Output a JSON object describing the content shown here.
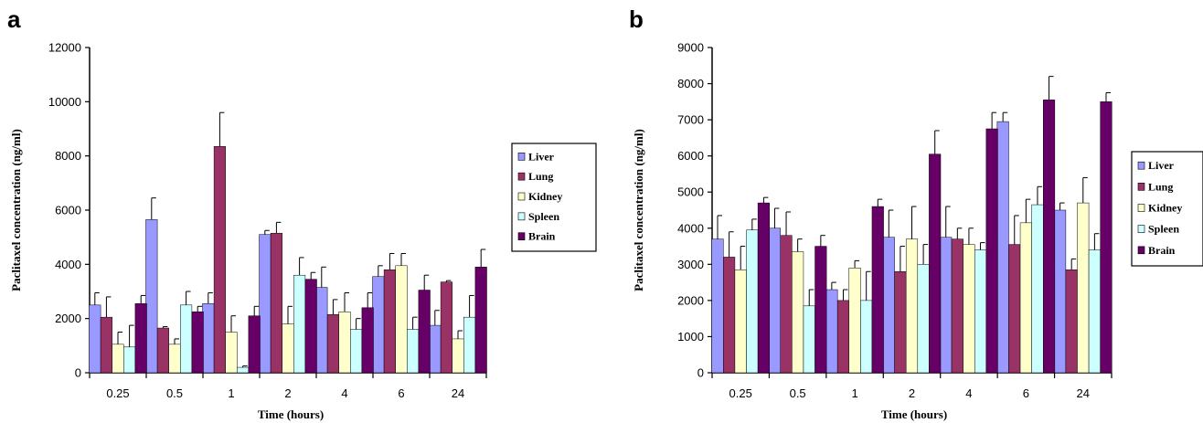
{
  "chart_data": [
    {
      "panel": "a",
      "type": "bar",
      "xlabel": "Time (hours)",
      "ylabel": "Paclitaxel concentration (ng/ml)",
      "ylim": [
        0,
        12000
      ],
      "yticks": [
        "0",
        "2000",
        "4000",
        "6000",
        "8000",
        "10000",
        "12000"
      ],
      "categories": [
        "0.25",
        "0.5",
        "1",
        "2",
        "4",
        "6",
        "24"
      ],
      "legend_position": "right",
      "series": [
        {
          "name": "Liver",
          "color": "#9999ff",
          "values": [
            2500,
            5650,
            2550,
            5100,
            3150,
            3550,
            1750
          ],
          "errors": [
            450,
            800,
            400,
            150,
            750,
            400,
            550
          ]
        },
        {
          "name": "Lung",
          "color": "#993366",
          "values": [
            2050,
            1650,
            8350,
            5150,
            2150,
            3800,
            3350
          ],
          "errors": [
            750,
            50,
            1250,
            400,
            550,
            600,
            50
          ]
        },
        {
          "name": "Kidney",
          "color": "#ffffcc",
          "values": [
            1050,
            1050,
            1500,
            1800,
            2250,
            3950,
            1250
          ],
          "errors": [
            450,
            200,
            600,
            650,
            700,
            450,
            300
          ]
        },
        {
          "name": "Spleen",
          "color": "#ccffff",
          "values": [
            950,
            2500,
            200,
            3600,
            1600,
            1600,
            2050
          ],
          "errors": [
            800,
            500,
            50,
            650,
            400,
            450,
            800
          ]
        },
        {
          "name": "Brain",
          "color": "#660066",
          "values": [
            2550,
            2250,
            2100,
            3450,
            2400,
            3050,
            3900
          ],
          "errors": [
            300,
            200,
            350,
            250,
            550,
            550,
            650
          ]
        }
      ]
    },
    {
      "panel": "b",
      "type": "bar",
      "xlabel": "Time (hours)",
      "ylabel": "Paclitaxel concentration (ng/ml)",
      "ylim": [
        0,
        9000
      ],
      "yticks": [
        "0",
        "1000",
        "2000",
        "3000",
        "4000",
        "5000",
        "6000",
        "7000",
        "8000",
        "9000"
      ],
      "categories": [
        "0.25",
        "0.5",
        "1",
        "2",
        "4",
        "6",
        "24"
      ],
      "legend_position": "right",
      "series": [
        {
          "name": "Liver",
          "color": "#9999ff",
          "values": [
            3700,
            4000,
            2300,
            3750,
            3750,
            6950,
            4500
          ],
          "errors": [
            650,
            550,
            200,
            750,
            850,
            250,
            200
          ]
        },
        {
          "name": "Lung",
          "color": "#993366",
          "values": [
            3200,
            3800,
            2000,
            2800,
            3700,
            3550,
            2850
          ],
          "errors": [
            700,
            650,
            300,
            700,
            300,
            800,
            300
          ]
        },
        {
          "name": "Kidney",
          "color": "#ffffcc",
          "values": [
            2850,
            3350,
            2900,
            3700,
            3550,
            4150,
            4700
          ],
          "errors": [
            650,
            350,
            200,
            900,
            450,
            650,
            700
          ]
        },
        {
          "name": "Spleen",
          "color": "#ccffff",
          "values": [
            3950,
            1850,
            2000,
            3000,
            3400,
            4650,
            3400
          ],
          "errors": [
            300,
            450,
            800,
            550,
            200,
            500,
            450
          ]
        },
        {
          "name": "Brain",
          "color": "#660066",
          "values": [
            4700,
            3500,
            4600,
            6050,
            6750,
            7550,
            7500
          ],
          "errors": [
            150,
            300,
            200,
            650,
            450,
            650,
            250
          ]
        }
      ]
    }
  ]
}
